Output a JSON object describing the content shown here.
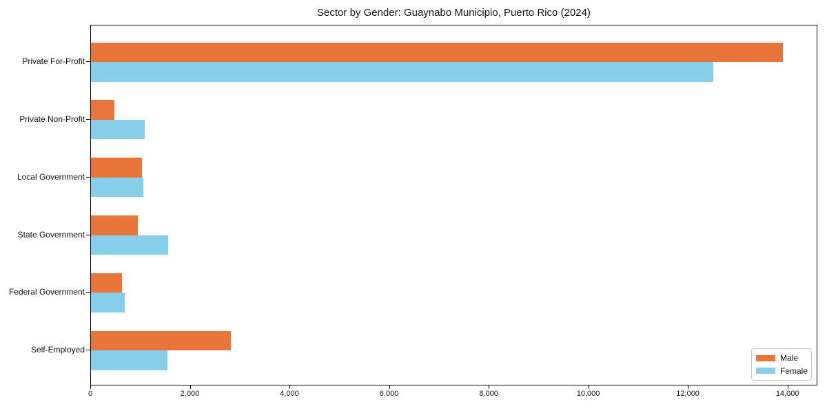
{
  "title": "Sector by Gender: Guaynabo Municipio, Puerto Rico (2024)",
  "colors": {
    "male": "#E8763B",
    "female": "#87CEEB",
    "spine": "#000000",
    "legend_border": "#CCCCCC"
  },
  "legend": {
    "items": [
      {
        "label": "Male",
        "color": "#E8763B"
      },
      {
        "label": "Female",
        "color": "#87CEEB"
      }
    ]
  },
  "chart_data": {
    "type": "bar",
    "orientation": "horizontal",
    "title": "Sector by Gender: Guaynabo Municipio, Puerto Rico (2024)",
    "categories": [
      "Private For-Profit",
      "Private Non-Profit",
      "Local Government",
      "State Government",
      "Federal Government",
      "Self-Employed"
    ],
    "series": [
      {
        "name": "Male",
        "color": "#E8763B",
        "values": [
          13900,
          475,
          1020,
          940,
          620,
          2810
        ]
      },
      {
        "name": "Female",
        "color": "#87CEEB",
        "values": [
          12490,
          1080,
          1050,
          1550,
          680,
          1540
        ]
      }
    ],
    "xlabel": "",
    "ylabel": "",
    "xlim": [
      0,
      14600
    ],
    "xticks": [
      0,
      2000,
      4000,
      6000,
      8000,
      10000,
      12000,
      14000
    ],
    "xtick_labels": [
      "0",
      "2,000",
      "4,000",
      "6,000",
      "8,000",
      "10,000",
      "12,000",
      "14,000"
    ],
    "grid": false,
    "legend_position": "lower right"
  }
}
